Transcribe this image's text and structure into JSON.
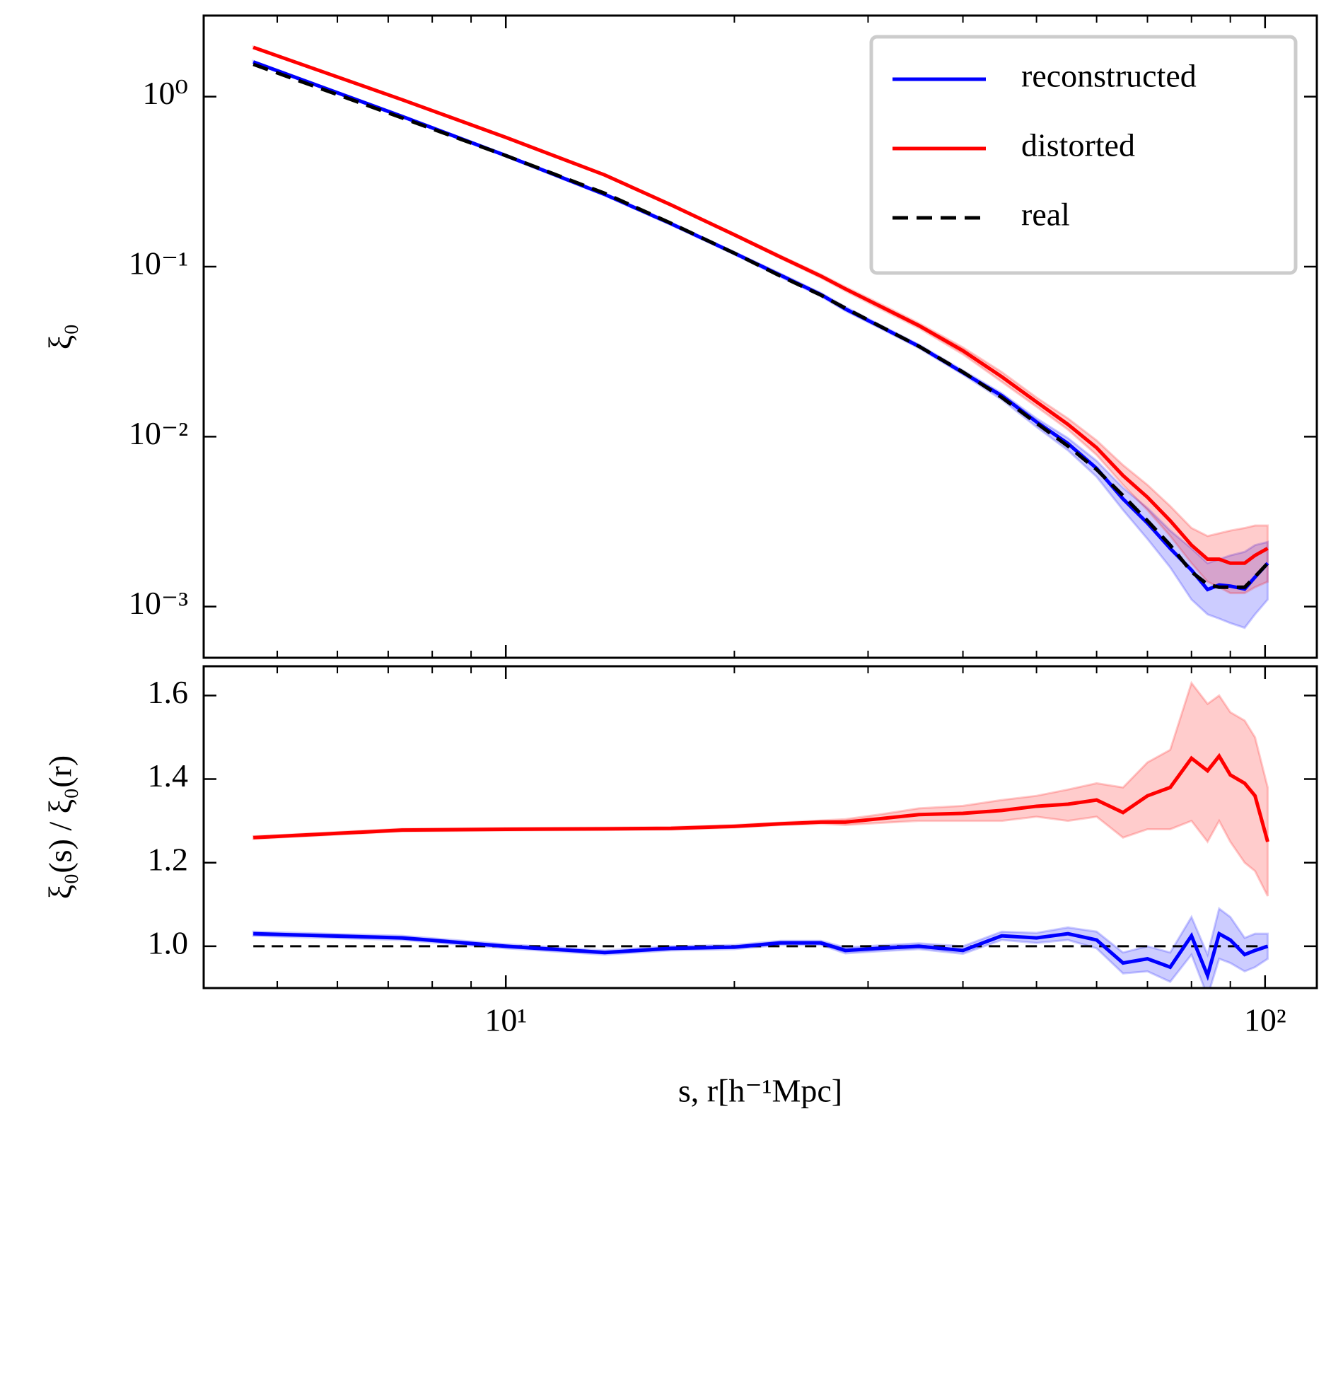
{
  "chart_data": [
    {
      "type": "line",
      "ylabel": "ξ₀",
      "yscale": "log",
      "xscale": "log",
      "xlim": [
        4.0,
        117
      ],
      "ylim": [
        0.0005,
        3.0
      ],
      "yticks": [
        {
          "value": 1,
          "label": "10⁰"
        },
        {
          "value": 0.1,
          "label": "10⁻¹"
        },
        {
          "value": 0.01,
          "label": "10⁻²"
        },
        {
          "value": 0.001,
          "label": "10⁻³"
        }
      ],
      "legend": "upper right",
      "x": [
        4.65,
        7.3,
        10,
        13.5,
        16.5,
        20,
        23,
        26,
        28,
        31,
        35,
        40,
        45,
        50,
        55,
        60,
        65,
        70,
        75,
        80,
        84,
        87,
        90,
        94,
        97,
        100.8
      ],
      "series": [
        {
          "name": "reconstructed",
          "color": "#0000ff",
          "dash": false,
          "values": [
            1.6,
            0.765,
            0.45,
            0.266,
            0.179,
            0.12,
            0.089,
            0.0685,
            0.0564,
            0.0448,
            0.034,
            0.0238,
            0.0174,
            0.0122,
            0.0091,
            0.0065,
            0.0043,
            0.0031,
            0.0022,
            0.00164,
            0.00126,
            0.00134,
            0.00132,
            0.00127,
            0.00149,
            0.0018
          ],
          "lower": [
            1.58,
            0.755,
            0.444,
            0.262,
            0.176,
            0.118,
            0.087,
            0.067,
            0.055,
            0.0438,
            0.0332,
            0.0232,
            0.0165,
            0.0114,
            0.0083,
            0.0058,
            0.0037,
            0.0025,
            0.0017,
            0.0011,
            0.0009,
            0.00085,
            0.0008,
            0.00075,
            0.0009,
            0.0011
          ],
          "upper": [
            1.62,
            0.775,
            0.456,
            0.27,
            0.182,
            0.122,
            0.091,
            0.07,
            0.058,
            0.0458,
            0.0348,
            0.0245,
            0.018,
            0.0128,
            0.0098,
            0.0072,
            0.005,
            0.0038,
            0.0028,
            0.0022,
            0.0018,
            0.0019,
            0.002,
            0.0021,
            0.0023,
            0.0024
          ]
        },
        {
          "name": "distorted",
          "color": "#ff0000",
          "dash": false,
          "values": [
            1.95,
            0.96,
            0.576,
            0.346,
            0.231,
            0.154,
            0.114,
            0.088,
            0.074,
            0.059,
            0.045,
            0.032,
            0.0225,
            0.016,
            0.0118,
            0.0086,
            0.0059,
            0.0044,
            0.0032,
            0.0023,
            0.0019,
            0.0019,
            0.0018,
            0.0018,
            0.002,
            0.0022
          ],
          "lower": [
            1.93,
            0.95,
            0.57,
            0.342,
            0.228,
            0.152,
            0.112,
            0.086,
            0.072,
            0.057,
            0.0435,
            0.0305,
            0.021,
            0.015,
            0.011,
            0.0078,
            0.0052,
            0.0037,
            0.0026,
            0.0018,
            0.0014,
            0.0013,
            0.0012,
            0.0012,
            0.0013,
            0.0014
          ],
          "upper": [
            1.97,
            0.97,
            0.582,
            0.35,
            0.234,
            0.156,
            0.116,
            0.09,
            0.076,
            0.061,
            0.0465,
            0.0335,
            0.024,
            0.017,
            0.0128,
            0.0095,
            0.0068,
            0.0052,
            0.0039,
            0.0029,
            0.0026,
            0.0027,
            0.0028,
            0.0029,
            0.003,
            0.003
          ]
        },
        {
          "name": "real",
          "color": "#000000",
          "dash": true,
          "values": [
            1.55,
            0.75,
            0.45,
            0.27,
            0.18,
            0.12,
            0.088,
            0.068,
            0.057,
            0.045,
            0.034,
            0.024,
            0.017,
            0.012,
            0.0088,
            0.0064,
            0.0045,
            0.0032,
            0.0023,
            0.0016,
            0.00135,
            0.0013,
            0.0013,
            0.0013,
            0.0015,
            0.0018
          ]
        }
      ]
    },
    {
      "type": "line",
      "ylabel": "ξ₀(s) / ξ₀(r)",
      "xlabel": "s, r[h⁻¹Mpc]",
      "yscale": "linear",
      "xscale": "log",
      "xlim": [
        4.0,
        117
      ],
      "ylim": [
        0.9,
        1.67
      ],
      "xticks": [
        {
          "value": 10,
          "label": "10¹"
        },
        {
          "value": 100,
          "label": "10²"
        }
      ],
      "xminorticks": [
        5,
        6,
        7,
        8,
        9,
        20,
        30,
        40,
        50,
        60,
        70,
        80,
        90
      ],
      "yticks": [
        {
          "value": 1,
          "label": "1.0"
        },
        1.2,
        1.4,
        1.6
      ],
      "hline": 1,
      "x": [
        4.65,
        7.3,
        10,
        13.5,
        16.5,
        20,
        23,
        26,
        28,
        31,
        35,
        40,
        45,
        50,
        55,
        60,
        65,
        70,
        75,
        80,
        84,
        87,
        90,
        94,
        97,
        100.8
      ],
      "series": [
        {
          "color": "#0000ff",
          "dash": false,
          "values": [
            1.03,
            1.02,
            1.0,
            0.985,
            0.995,
            0.998,
            1.008,
            1.008,
            0.99,
            0.995,
            1.0,
            0.99,
            1.025,
            1.02,
            1.03,
            1.015,
            0.96,
            0.97,
            0.95,
            1.025,
            0.93,
            1.03,
            1.015,
            0.98,
            0.99,
            1.0
          ],
          "lower": [
            1.025,
            1.015,
            0.995,
            0.98,
            0.99,
            0.993,
            1.003,
            1.003,
            0.983,
            0.988,
            0.993,
            0.982,
            1.015,
            1.008,
            1.015,
            0.995,
            0.935,
            0.94,
            0.915,
            0.98,
            0.88,
            0.97,
            0.96,
            0.94,
            0.95,
            0.97
          ],
          "upper": [
            1.035,
            1.025,
            1.005,
            0.99,
            1.0,
            1.003,
            1.013,
            1.013,
            0.997,
            1.002,
            1.007,
            1.0,
            1.035,
            1.032,
            1.045,
            1.035,
            0.985,
            1.0,
            0.985,
            1.07,
            0.98,
            1.09,
            1.07,
            1.02,
            1.03,
            1.03
          ]
        },
        {
          "color": "#ff0000",
          "dash": false,
          "values": [
            1.26,
            1.278,
            1.28,
            1.281,
            1.282,
            1.287,
            1.293,
            1.297,
            1.297,
            1.305,
            1.315,
            1.318,
            1.325,
            1.335,
            1.34,
            1.35,
            1.32,
            1.36,
            1.38,
            1.45,
            1.42,
            1.455,
            1.41,
            1.39,
            1.36,
            1.25
          ],
          "lower": [
            1.257,
            1.275,
            1.277,
            1.278,
            1.279,
            1.284,
            1.29,
            1.293,
            1.29,
            1.295,
            1.3,
            1.3,
            1.3,
            1.31,
            1.3,
            1.31,
            1.26,
            1.28,
            1.28,
            1.3,
            1.25,
            1.3,
            1.25,
            1.2,
            1.18,
            1.12
          ],
          "upper": [
            1.263,
            1.281,
            1.283,
            1.284,
            1.285,
            1.29,
            1.296,
            1.301,
            1.304,
            1.315,
            1.33,
            1.336,
            1.35,
            1.36,
            1.375,
            1.39,
            1.38,
            1.44,
            1.47,
            1.63,
            1.58,
            1.6,
            1.56,
            1.54,
            1.5,
            1.38
          ]
        }
      ]
    }
  ]
}
